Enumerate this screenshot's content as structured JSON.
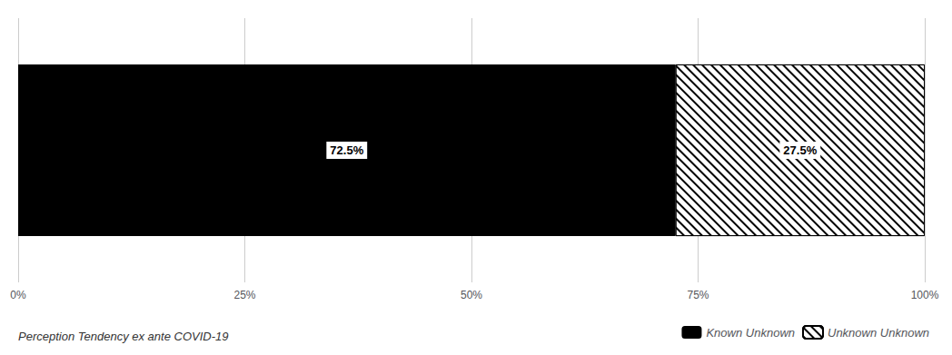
{
  "chart_data": {
    "type": "bar",
    "orientation": "horizontal",
    "stacked": true,
    "categories": [
      null
    ],
    "series": [
      {
        "name": "Known Unknown",
        "color": "#000000",
        "values": [
          72.5
        ],
        "value_labels": [
          "72.5%"
        ]
      },
      {
        "name": "Unknown Unknown",
        "color": "#ffffff",
        "values": [
          27.5
        ],
        "value_labels": [
          "27.5%"
        ]
      }
    ],
    "xlim": [
      0,
      100
    ],
    "xticks": [
      {
        "value": 0,
        "label": "0%"
      },
      {
        "value": 25,
        "label": "25%"
      },
      {
        "value": 50,
        "label": "50%"
      },
      {
        "value": 75,
        "label": "75%"
      },
      {
        "value": 100,
        "label": "100%"
      }
    ],
    "grid": true,
    "legend": "lower right",
    "data_labels": true,
    "tick_labels": "x",
    "annotations": [
      "Perception Tendency ex ante COVID-19"
    ]
  }
}
